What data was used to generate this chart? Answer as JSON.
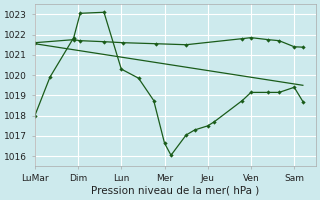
{
  "xlabel": "Pression niveau de la mer( hPa )",
  "background_color": "#cdeaed",
  "grid_color": "#ffffff",
  "line_color": "#1a5c1a",
  "xlim": [
    0,
    6.5
  ],
  "ylim": [
    1015.5,
    1023.5
  ],
  "yticks": [
    1016,
    1017,
    1018,
    1019,
    1020,
    1021,
    1022,
    1023
  ],
  "xtick_labels": [
    "LuMar",
    "Dim",
    "Lun",
    "Mer",
    "Jeu",
    "Ven",
    "Sam"
  ],
  "xtick_positions": [
    0,
    1,
    2,
    3,
    4,
    5,
    6
  ],
  "series1_x": [
    0.0,
    0.35,
    0.9,
    1.05,
    1.6,
    2.0,
    2.4,
    2.75,
    3.0,
    3.15,
    3.5,
    3.7,
    4.0,
    4.15,
    4.8,
    5.0,
    5.4,
    5.65,
    6.0,
    6.2
  ],
  "series1_y": [
    1018.0,
    1019.9,
    1021.85,
    1023.05,
    1023.1,
    1020.3,
    1019.85,
    1018.75,
    1016.65,
    1016.05,
    1017.05,
    1017.3,
    1017.5,
    1017.7,
    1018.75,
    1019.15,
    1019.15,
    1019.15,
    1019.4,
    1018.7
  ],
  "series2_x": [
    0.0,
    0.9,
    1.05,
    1.6,
    2.05,
    2.8,
    3.5,
    4.8,
    5.0,
    5.4,
    5.65,
    6.0,
    6.2
  ],
  "series2_y": [
    1021.6,
    1021.75,
    1021.7,
    1021.65,
    1021.6,
    1021.55,
    1021.5,
    1021.8,
    1021.85,
    1021.75,
    1021.7,
    1021.4,
    1021.38
  ],
  "series3_x": [
    0.0,
    6.2
  ],
  "series3_y": [
    1021.55,
    1019.5
  ]
}
